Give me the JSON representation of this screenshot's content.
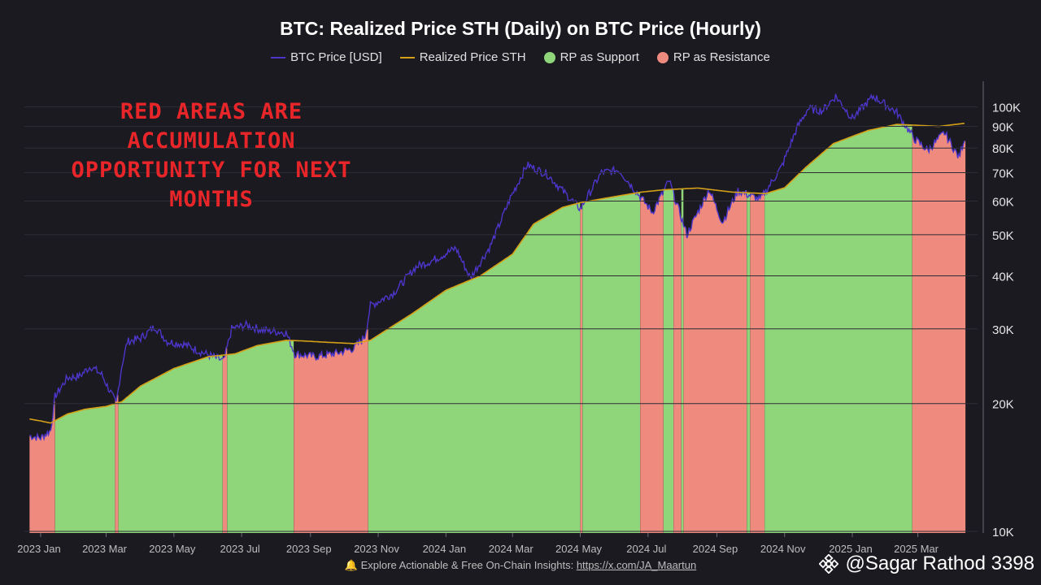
{
  "title": "BTC: Realized Price STH (Daily) on BTC Price (Hourly)",
  "legend": [
    {
      "label": "BTC Price [USD]",
      "color": "#4b36c9",
      "kind": "line"
    },
    {
      "label": "Realized Price STH",
      "color": "#d4a017",
      "kind": "line"
    },
    {
      "label": "RP as Support",
      "color": "#8fd67a",
      "kind": "dot"
    },
    {
      "label": "RP as Resistance",
      "color": "#ef8a7e",
      "kind": "dot"
    }
  ],
  "annotation": "RED AREAS ARE ACCUMULATION OPPORTUNITY FOR NEXT MONTHS",
  "footer": {
    "text": "Explore Actionable & Free On-Chain Insights:",
    "link": "https://x.com/JA_Maartun",
    "icon": "bell-icon"
  },
  "watermark": {
    "text": "@Sagar Rathod 3398",
    "icon": "binance-logo"
  },
  "chart_data": {
    "type": "area",
    "y_scale": "log",
    "ylim": [
      10000,
      110000
    ],
    "xlim": [
      "2023-01-01",
      "2025-04-15"
    ],
    "y_ticks": [
      {
        "v": 10000,
        "label": "10K"
      },
      {
        "v": 20000,
        "label": "20K"
      },
      {
        "v": 30000,
        "label": "30K"
      },
      {
        "v": 40000,
        "label": "40K"
      },
      {
        "v": 50000,
        "label": "50K"
      },
      {
        "v": 60000,
        "label": "60K"
      },
      {
        "v": 70000,
        "label": "70K"
      },
      {
        "v": 80000,
        "label": "80K"
      },
      {
        "v": 90000,
        "label": "90K"
      },
      {
        "v": 100000,
        "label": "100K"
      }
    ],
    "x_ticks": [
      {
        "date": "2023-01-01",
        "label": "2023 Jan"
      },
      {
        "date": "2023-03-01",
        "label": "2023 Mar"
      },
      {
        "date": "2023-05-01",
        "label": "2023 May"
      },
      {
        "date": "2023-07-01",
        "label": "2023 Jul"
      },
      {
        "date": "2023-09-01",
        "label": "2023 Sep"
      },
      {
        "date": "2023-11-01",
        "label": "2023 Nov"
      },
      {
        "date": "2024-01-01",
        "label": "2024 Jan"
      },
      {
        "date": "2024-03-01",
        "label": "2024 Mar"
      },
      {
        "date": "2024-05-01",
        "label": "2024 May"
      },
      {
        "date": "2024-07-01",
        "label": "2024 Jul"
      },
      {
        "date": "2024-09-01",
        "label": "2024 Sep"
      },
      {
        "date": "2024-11-01",
        "label": "2024 Nov"
      },
      {
        "date": "2025-01-01",
        "label": "2025 Jan"
      },
      {
        "date": "2025-03-01",
        "label": "2025 Mar"
      }
    ],
    "series": [
      {
        "name": "Realized Price STH",
        "color": "#d4a017",
        "points": [
          [
            "2022-12-22",
            18400
          ],
          [
            "2023-01-01",
            18200
          ],
          [
            "2023-01-10",
            18000
          ],
          [
            "2023-01-25",
            18900
          ],
          [
            "2023-02-10",
            19400
          ],
          [
            "2023-03-01",
            19700
          ],
          [
            "2023-03-15",
            20200
          ],
          [
            "2023-04-01",
            22000
          ],
          [
            "2023-05-01",
            24200
          ],
          [
            "2023-06-01",
            25800
          ],
          [
            "2023-06-25",
            26200
          ],
          [
            "2023-07-15",
            27400
          ],
          [
            "2023-08-10",
            28200
          ],
          [
            "2023-08-25",
            28100
          ],
          [
            "2023-09-15",
            27900
          ],
          [
            "2023-10-10",
            27700
          ],
          [
            "2023-10-25",
            28200
          ],
          [
            "2023-11-10",
            30000
          ],
          [
            "2023-12-01",
            32500
          ],
          [
            "2024-01-01",
            37000
          ],
          [
            "2024-02-01",
            40000
          ],
          [
            "2024-03-01",
            45000
          ],
          [
            "2024-03-20",
            53000
          ],
          [
            "2024-04-15",
            58000
          ],
          [
            "2024-05-01",
            59500
          ],
          [
            "2024-06-01",
            61500
          ],
          [
            "2024-06-25",
            63000
          ],
          [
            "2024-07-15",
            63800
          ],
          [
            "2024-08-15",
            64400
          ],
          [
            "2024-09-15",
            63000
          ],
          [
            "2024-10-15",
            62500
          ],
          [
            "2024-11-01",
            64500
          ],
          [
            "2024-11-20",
            72000
          ],
          [
            "2024-12-15",
            82000
          ],
          [
            "2025-01-15",
            88000
          ],
          [
            "2025-02-10",
            91000
          ],
          [
            "2025-03-01",
            90500
          ],
          [
            "2025-03-20",
            90000
          ],
          [
            "2025-04-12",
            91500
          ]
        ]
      },
      {
        "name": "BTC Price [USD]",
        "color": "#4b36c9",
        "points": [
          [
            "2022-12-22",
            16800
          ],
          [
            "2023-01-01",
            16600
          ],
          [
            "2023-01-10",
            17300
          ],
          [
            "2023-01-14",
            20800
          ],
          [
            "2023-01-25",
            23000
          ],
          [
            "2023-02-05",
            23200
          ],
          [
            "2023-02-15",
            24500
          ],
          [
            "2023-02-25",
            23400
          ],
          [
            "2023-03-10",
            20000
          ],
          [
            "2023-03-15",
            24500
          ],
          [
            "2023-03-20",
            28000
          ],
          [
            "2023-04-01",
            28500
          ],
          [
            "2023-04-14",
            30400
          ],
          [
            "2023-04-25",
            28000
          ],
          [
            "2023-05-10",
            27600
          ],
          [
            "2023-05-25",
            26500
          ],
          [
            "2023-06-15",
            25200
          ],
          [
            "2023-06-22",
            30000
          ],
          [
            "2023-07-05",
            30600
          ],
          [
            "2023-07-20",
            29800
          ],
          [
            "2023-08-10",
            29400
          ],
          [
            "2023-08-18",
            26200
          ],
          [
            "2023-09-05",
            25800
          ],
          [
            "2023-09-25",
            26300
          ],
          [
            "2023-10-10",
            27000
          ],
          [
            "2023-10-20",
            28800
          ],
          [
            "2023-10-25",
            34000
          ],
          [
            "2023-11-15",
            36500
          ],
          [
            "2023-12-05",
            42000
          ],
          [
            "2023-12-20",
            43500
          ],
          [
            "2024-01-10",
            46500
          ],
          [
            "2024-01-23",
            39500
          ],
          [
            "2024-02-10",
            47000
          ],
          [
            "2024-02-28",
            61000
          ],
          [
            "2024-03-14",
            73000
          ],
          [
            "2024-04-01",
            69500
          ],
          [
            "2024-04-15",
            63500
          ],
          [
            "2024-05-01",
            57500
          ],
          [
            "2024-05-20",
            70000
          ],
          [
            "2024-06-05",
            71000
          ],
          [
            "2024-06-25",
            61000
          ],
          [
            "2024-07-05",
            56500
          ],
          [
            "2024-07-20",
            67000
          ],
          [
            "2024-08-05",
            50000
          ],
          [
            "2024-08-25",
            64000
          ],
          [
            "2024-09-06",
            53500
          ],
          [
            "2024-09-20",
            63500
          ],
          [
            "2024-10-10",
            60500
          ],
          [
            "2024-10-29",
            72000
          ],
          [
            "2024-11-12",
            89000
          ],
          [
            "2024-11-22",
            99000
          ],
          [
            "2024-12-05",
            98000
          ],
          [
            "2024-12-17",
            106000
          ],
          [
            "2025-01-01",
            94000
          ],
          [
            "2025-01-20",
            106000
          ],
          [
            "2025-02-10",
            97000
          ],
          [
            "2025-02-26",
            84000
          ],
          [
            "2025-03-10",
            79000
          ],
          [
            "2025-03-25",
            87000
          ],
          [
            "2025-04-07",
            76000
          ],
          [
            "2025-04-12",
            84500
          ]
        ]
      }
    ],
    "resistance_periods": [
      [
        "2022-12-22",
        "2023-01-13"
      ],
      [
        "2023-03-09",
        "2023-03-11"
      ],
      [
        "2023-06-14",
        "2023-06-17"
      ],
      [
        "2023-08-17",
        "2023-10-22"
      ],
      [
        "2024-05-01",
        "2024-05-02"
      ],
      [
        "2024-06-24",
        "2024-07-14"
      ],
      [
        "2024-07-24",
        "2024-07-30"
      ],
      [
        "2024-08-02",
        "2024-09-27"
      ],
      [
        "2024-10-01",
        "2024-10-13"
      ],
      [
        "2025-02-24",
        "2025-04-14"
      ]
    ]
  }
}
